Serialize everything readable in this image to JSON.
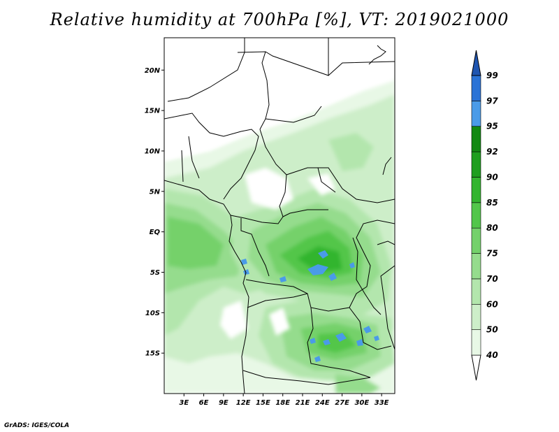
{
  "title": "Relative humidity at 700hPa [%], VT: 2019021000",
  "credit": "GrADS: IGES/COLA",
  "map": {
    "lon_range": [
      0,
      35
    ],
    "lat_range": [
      -20,
      24
    ],
    "lat_ticks": [
      {
        "value": 20,
        "label": "20N"
      },
      {
        "value": 15,
        "label": "15N"
      },
      {
        "value": 10,
        "label": "10N"
      },
      {
        "value": 5,
        "label": "5N"
      },
      {
        "value": 0,
        "label": "EQ"
      },
      {
        "value": -5,
        "label": "5S"
      },
      {
        "value": -10,
        "label": "10S"
      },
      {
        "value": -15,
        "label": "15S"
      }
    ],
    "lon_ticks": [
      {
        "value": 3,
        "label": "3E"
      },
      {
        "value": 6,
        "label": "6E"
      },
      {
        "value": 9,
        "label": "9E"
      },
      {
        "value": 12,
        "label": "12E"
      },
      {
        "value": 15,
        "label": "15E"
      },
      {
        "value": 18,
        "label": "18E"
      },
      {
        "value": 21,
        "label": "21E"
      },
      {
        "value": 24,
        "label": "24E"
      },
      {
        "value": 27,
        "label": "27E"
      },
      {
        "value": 30,
        "label": "30E"
      },
      {
        "value": 33,
        "label": "33E"
      }
    ]
  },
  "colorbar": {
    "levels": [
      {
        "label": "40",
        "color": "#e8f8e6"
      },
      {
        "label": "50",
        "color": "#cdeec9"
      },
      {
        "label": "60",
        "color": "#b3e6ad"
      },
      {
        "label": "70",
        "color": "#95dc8d"
      },
      {
        "label": "75",
        "color": "#74d16b"
      },
      {
        "label": "80",
        "color": "#52c64a"
      },
      {
        "label": "85",
        "color": "#33b52f"
      },
      {
        "label": "90",
        "color": "#1e9e1e"
      },
      {
        "label": "92",
        "color": "#128912"
      },
      {
        "label": "95",
        "color": "#4a9be8"
      },
      {
        "label": "97",
        "color": "#2a73d6"
      },
      {
        "label": "99",
        "color": "#1f55b0"
      }
    ],
    "below_color": "#ffffff",
    "above_color": "#1f55b0"
  }
}
